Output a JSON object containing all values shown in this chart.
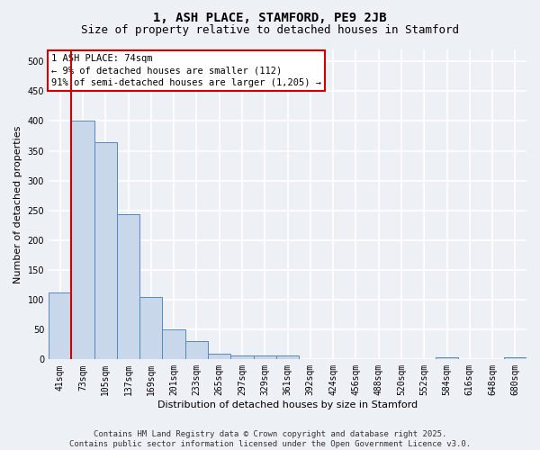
{
  "title": "1, ASH PLACE, STAMFORD, PE9 2JB",
  "subtitle": "Size of property relative to detached houses in Stamford",
  "xlabel": "Distribution of detached houses by size in Stamford",
  "ylabel": "Number of detached properties",
  "categories": [
    "41sqm",
    "73sqm",
    "105sqm",
    "137sqm",
    "169sqm",
    "201sqm",
    "233sqm",
    "265sqm",
    "297sqm",
    "329sqm",
    "361sqm",
    "392sqm",
    "424sqm",
    "456sqm",
    "488sqm",
    "520sqm",
    "552sqm",
    "584sqm",
    "616sqm",
    "648sqm",
    "680sqm"
  ],
  "values": [
    112,
    400,
    365,
    243,
    105,
    50,
    30,
    10,
    7,
    7,
    7,
    0,
    0,
    0,
    0,
    0,
    0,
    4,
    0,
    0,
    4
  ],
  "bar_color": "#c8d8ea",
  "bar_edge_color": "#5588bb",
  "annotation_box_text": "1 ASH PLACE: 74sqm\n← 9% of detached houses are smaller (112)\n91% of semi-detached houses are larger (1,205) →",
  "vline_color": "#cc0000",
  "ylim": [
    0,
    520
  ],
  "yticks": [
    0,
    50,
    100,
    150,
    200,
    250,
    300,
    350,
    400,
    450,
    500
  ],
  "footer": "Contains HM Land Registry data © Crown copyright and database right 2025.\nContains public sector information licensed under the Open Government Licence v3.0.",
  "background_color": "#edf0f5",
  "grid_color": "#ffffff",
  "title_fontsize": 10,
  "subtitle_fontsize": 9,
  "axis_label_fontsize": 8,
  "tick_fontsize": 7,
  "footer_fontsize": 6.5,
  "annotation_fontsize": 7.5
}
